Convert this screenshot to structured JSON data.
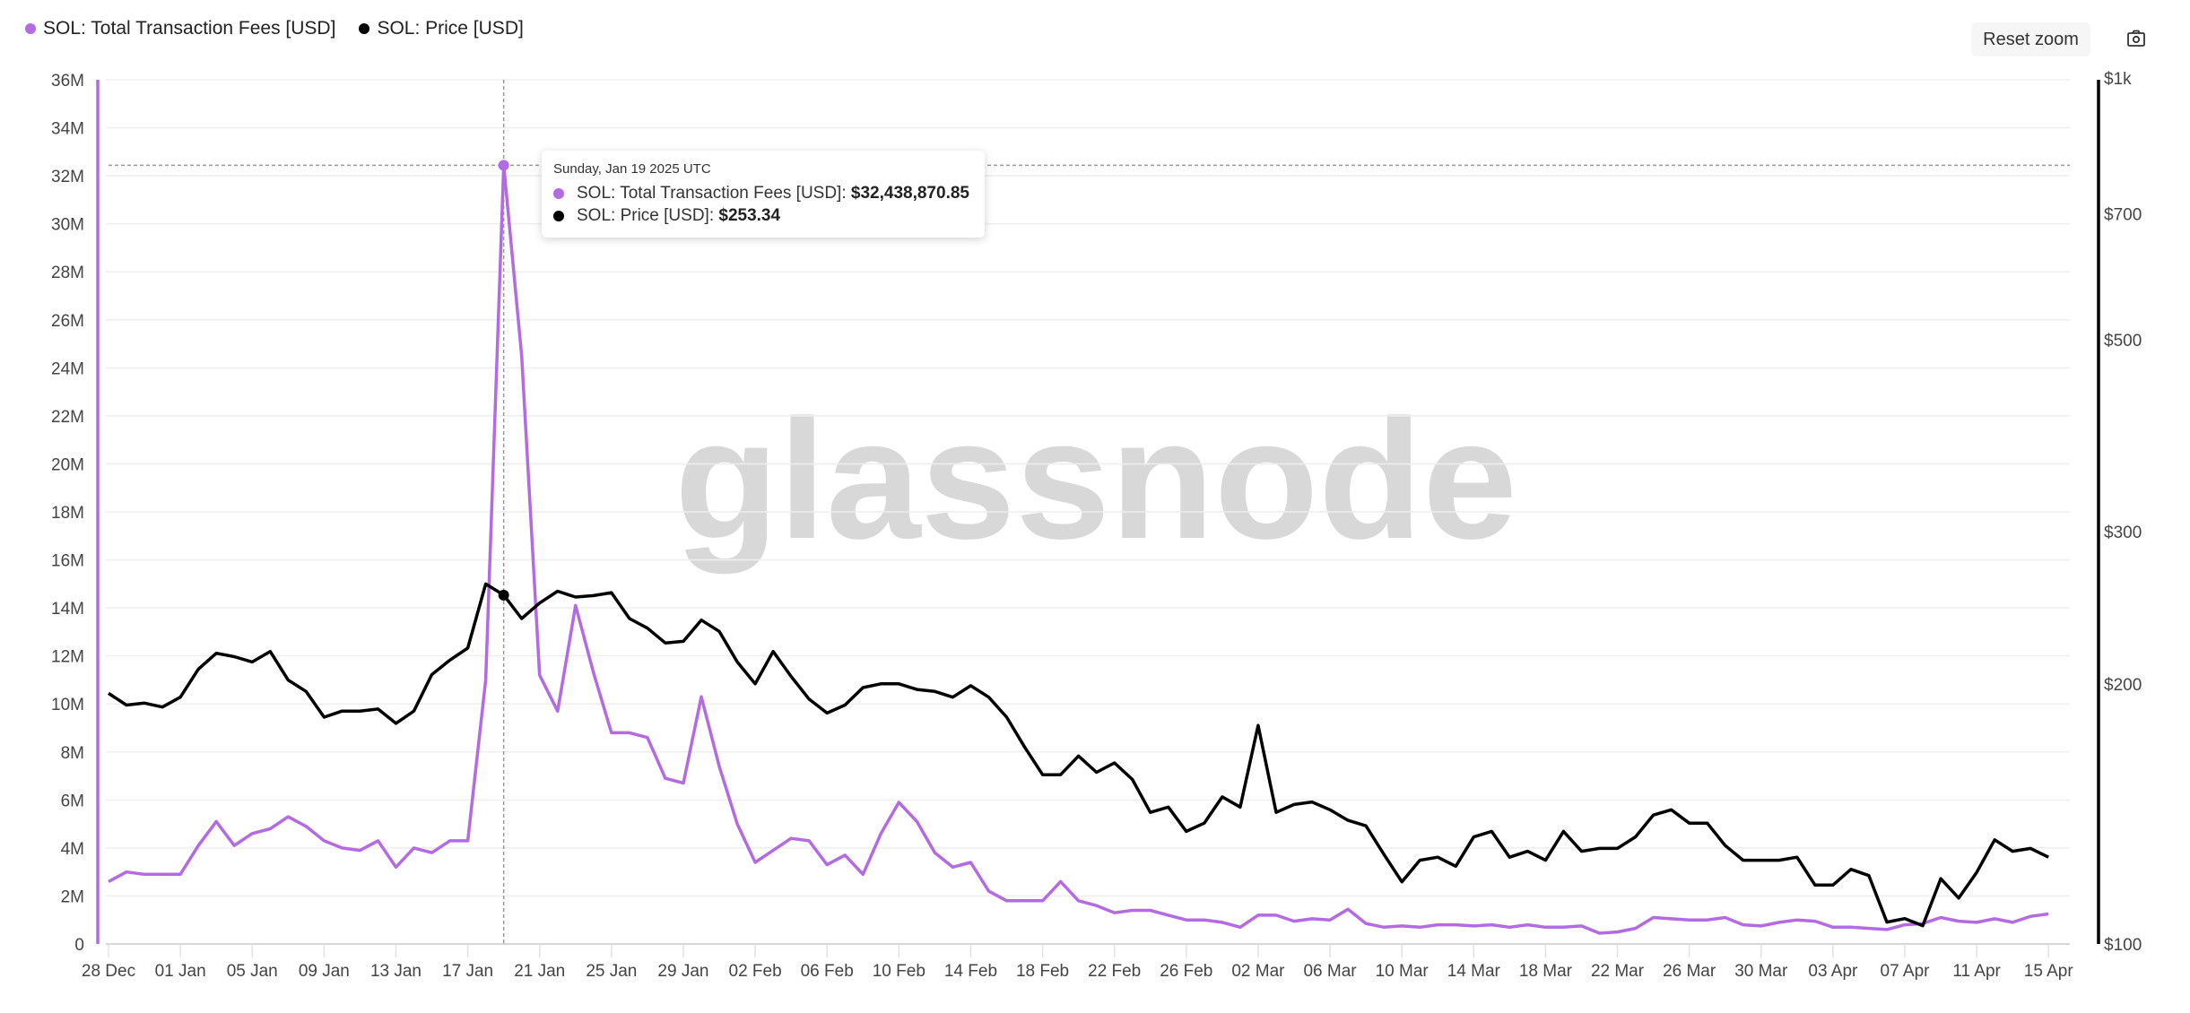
{
  "legend": [
    {
      "label": "SOL: Total Transaction Fees [USD]",
      "color": "#b36ae2"
    },
    {
      "label": "SOL: Price [USD]",
      "color": "#000000"
    }
  ],
  "toolbar": {
    "reset_zoom_label": "Reset zoom",
    "export_icon": "camera-icon"
  },
  "watermark": "glassnode",
  "tooltip": {
    "date": "Sunday, Jan 19 2025 UTC",
    "rows": [
      {
        "label": "SOL: Total Transaction Fees [USD]:",
        "value": "$32,438,870.85"
      },
      {
        "label": "SOL: Price [USD]:",
        "value": "$253.34"
      }
    ]
  },
  "chart_data": {
    "type": "line",
    "title": "",
    "x_start": "2024-12-28",
    "x_end": "2025-04-15",
    "x_tick_labels": [
      "28 Dec",
      "01 Jan",
      "05 Jan",
      "09 Jan",
      "13 Jan",
      "17 Jan",
      "21 Jan",
      "25 Jan",
      "29 Jan",
      "02 Feb",
      "06 Feb",
      "10 Feb",
      "14 Feb",
      "18 Feb",
      "22 Feb",
      "26 Feb",
      "02 Mar",
      "06 Mar",
      "10 Mar",
      "14 Mar",
      "18 Mar",
      "22 Mar",
      "26 Mar",
      "30 Mar",
      "03 Apr",
      "07 Apr",
      "11 Apr",
      "15 Apr"
    ],
    "x_tick_step_days": 4,
    "left_axis": {
      "unit": "USD (millions)",
      "range": [
        0,
        36
      ],
      "tick_labels": [
        "0",
        "2M",
        "4M",
        "6M",
        "8M",
        "10M",
        "12M",
        "14M",
        "16M",
        "18M",
        "20M",
        "22M",
        "24M",
        "26M",
        "28M",
        "30M",
        "32M",
        "34M",
        "36M"
      ]
    },
    "right_axis": {
      "scale": "log",
      "range": [
        100,
        1000
      ],
      "ticks": [
        100,
        200,
        300,
        500,
        700,
        1000
      ],
      "tick_labels": [
        "$100",
        "$200",
        "$300",
        "$500",
        "$700",
        "$1k"
      ]
    },
    "grid": true,
    "legend_position": "top-left",
    "highlight_index": 22,
    "series": [
      {
        "name": "SOL: Total Transaction Fees [USD]",
        "axis": "left",
        "unit": "M USD",
        "color": "#b36ae2",
        "values": [
          2.6,
          3.0,
          2.9,
          2.9,
          2.9,
          4.1,
          5.1,
          4.1,
          4.6,
          4.8,
          5.3,
          4.9,
          4.3,
          4.0,
          3.9,
          4.3,
          3.2,
          4.0,
          3.8,
          4.3,
          4.3,
          11.0,
          32.44,
          24.5,
          11.2,
          9.7,
          14.1,
          11.3,
          8.8,
          8.8,
          8.6,
          6.9,
          6.7,
          10.3,
          7.4,
          5.0,
          3.4,
          3.9,
          4.4,
          4.3,
          3.3,
          3.7,
          2.9,
          4.6,
          5.9,
          5.1,
          3.8,
          3.2,
          3.4,
          2.2,
          1.8,
          1.8,
          1.8,
          2.6,
          1.8,
          1.6,
          1.3,
          1.4,
          1.4,
          1.2,
          1.0,
          1.0,
          0.9,
          0.7,
          1.2,
          1.2,
          0.95,
          1.05,
          1.0,
          1.45,
          0.85,
          0.7,
          0.75,
          0.7,
          0.8,
          0.8,
          0.75,
          0.8,
          0.7,
          0.8,
          0.7,
          0.7,
          0.75,
          0.45,
          0.5,
          0.65,
          1.1,
          1.05,
          1.0,
          1.0,
          1.1,
          0.8,
          0.75,
          0.9,
          1.0,
          0.95,
          0.7,
          0.7,
          0.65,
          0.6,
          0.8,
          0.85,
          1.1,
          0.95,
          0.9,
          1.05,
          0.9,
          1.15,
          1.25
        ]
      },
      {
        "name": "SOL: Price [USD]",
        "axis": "right",
        "unit": "USD",
        "color": "#000000",
        "values": [
          195,
          189,
          190,
          188,
          193,
          208,
          217,
          215,
          212,
          218,
          202,
          196,
          183,
          186,
          186,
          187,
          180,
          186,
          205,
          213,
          220,
          261,
          253.34,
          238,
          248,
          256,
          252,
          253,
          255,
          238,
          232,
          223,
          224,
          237,
          230,
          212,
          200,
          218,
          204,
          192,
          185,
          189,
          198,
          200,
          200,
          197,
          196,
          193,
          199,
          193,
          183,
          169,
          157,
          157,
          165,
          158,
          162,
          155,
          142,
          144,
          135,
          138,
          148,
          144,
          179,
          142,
          145,
          146,
          143,
          139,
          137,
          127,
          118,
          125,
          126,
          123,
          133,
          135,
          126,
          128,
          125,
          135,
          128,
          129,
          129,
          133,
          141,
          143,
          138,
          138,
          130,
          125,
          125,
          125,
          126,
          117,
          117,
          122,
          120,
          106,
          107,
          105,
          119,
          113,
          121,
          132,
          128,
          129,
          126
        ]
      }
    ]
  }
}
